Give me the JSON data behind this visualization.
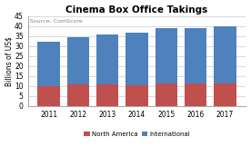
{
  "years": [
    "2011",
    "2012",
    "2013",
    "2014",
    "2015",
    "2016",
    "2017"
  ],
  "north_america": [
    10.0,
    10.8,
    10.9,
    10.4,
    11.1,
    11.4,
    11.1
  ],
  "international": [
    22.2,
    23.7,
    24.7,
    26.3,
    27.9,
    27.5,
    29.0
  ],
  "color_na": "#c0504d",
  "color_intl": "#4f81bd",
  "title": "Cinema Box Office Takings",
  "ylabel": "Billions of US$",
  "source": "Source: ComScore",
  "ylim": [
    0,
    45
  ],
  "yticks": [
    0,
    5,
    10,
    15,
    20,
    25,
    30,
    35,
    40,
    45
  ],
  "legend_na": "North America",
  "legend_intl": "International",
  "background_color": "#ffffff",
  "grid_color": "#d9d9d9",
  "title_fontsize": 7.5,
  "tick_fontsize": 5.5,
  "ylabel_fontsize": 5.5,
  "legend_fontsize": 5.0,
  "bar_width": 0.75
}
